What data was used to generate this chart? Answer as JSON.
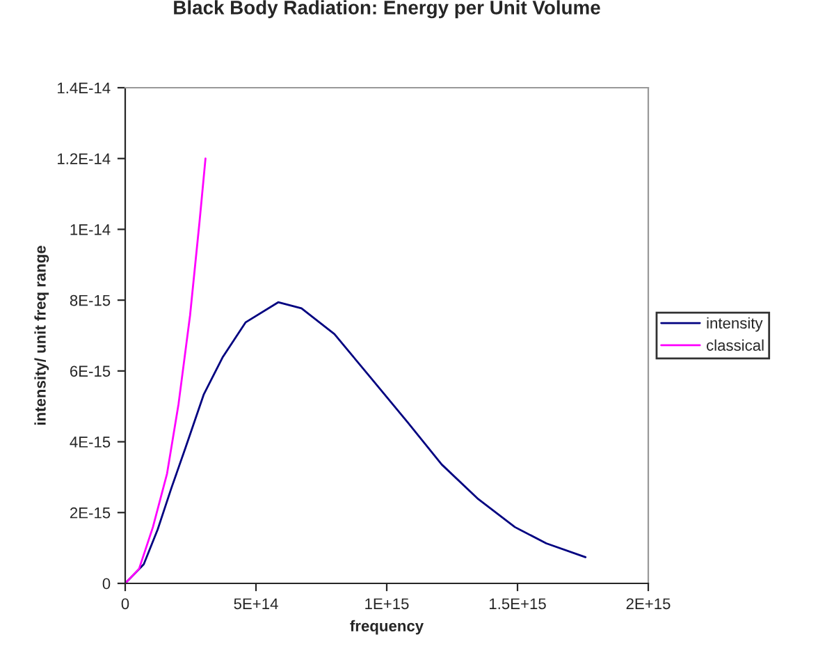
{
  "chart_data": {
    "type": "line",
    "title": "Black Body Radiation: Energy per Unit Volume",
    "xlabel": "frequency",
    "ylabel": "intensity/ unit freq range",
    "xlim": [
      0,
      2000000000000000.0
    ],
    "xticks": [
      {
        "value": 0,
        "label": "0"
      },
      {
        "value": 500000000000000.0,
        "label": "5E+14"
      },
      {
        "value": 1000000000000000.0,
        "label": "1E+15"
      },
      {
        "value": 1500000000000000.0,
        "label": "1.5E+15"
      },
      {
        "value": 2000000000000000.0,
        "label": "2E+15"
      }
    ],
    "ylim": [
      0,
      1.4e-14
    ],
    "yticks": [
      {
        "value": 0,
        "label": "0"
      },
      {
        "value": 2e-15,
        "label": "2E-15"
      },
      {
        "value": 4e-15,
        "label": "4E-15"
      },
      {
        "value": 6e-15,
        "label": "6E-15"
      },
      {
        "value": 8e-15,
        "label": "8E-15"
      },
      {
        "value": 1e-14,
        "label": "1E-14"
      },
      {
        "value": 1.2e-14,
        "label": "1.2E-14"
      },
      {
        "value": 1.4e-14,
        "label": "1.4E-14"
      }
    ],
    "grid": false,
    "legend": "right",
    "marker": "none",
    "line_style": "solid",
    "series": [
      {
        "name": "intensity",
        "color": "#000080",
        "x": [
          0,
          71000000000000.0,
          124000000000000.0,
          177000000000000.0,
          230000000000000.0,
          300000000000000.0,
          372000000000000.0,
          460000000000000.0,
          585000000000000.0,
          674000000000000.0,
          800000000000000.0,
          940000000000000.0,
          1080000000000000.0,
          1210000000000000.0,
          1350000000000000.0,
          1490000000000000.0,
          1610000000000000.0,
          1760000000000000.0
        ],
        "values": [
          0,
          5.4e-16,
          1.52e-15,
          2.7e-15,
          3.82e-15,
          5.33e-15,
          6.38e-15,
          7.37e-15,
          7.94e-15,
          7.77e-15,
          7.04e-15,
          5.8e-15,
          4.55e-15,
          3.36e-15,
          2.38e-15,
          1.59e-15,
          1.13e-15,
          7.4e-16
        ]
      },
      {
        "name": "classical",
        "color": "#ff00ff",
        "x": [
          0,
          53000000000000.0,
          106000000000000.0,
          160000000000000.0,
          204000000000000.0,
          248000000000000.0,
          284000000000000.0,
          307000000000000.0
        ],
        "values": [
          0,
          4.1e-16,
          1.59e-15,
          3.1e-15,
          5.07e-15,
          7.57e-15,
          1.02e-14,
          1.2e-14
        ]
      }
    ]
  }
}
